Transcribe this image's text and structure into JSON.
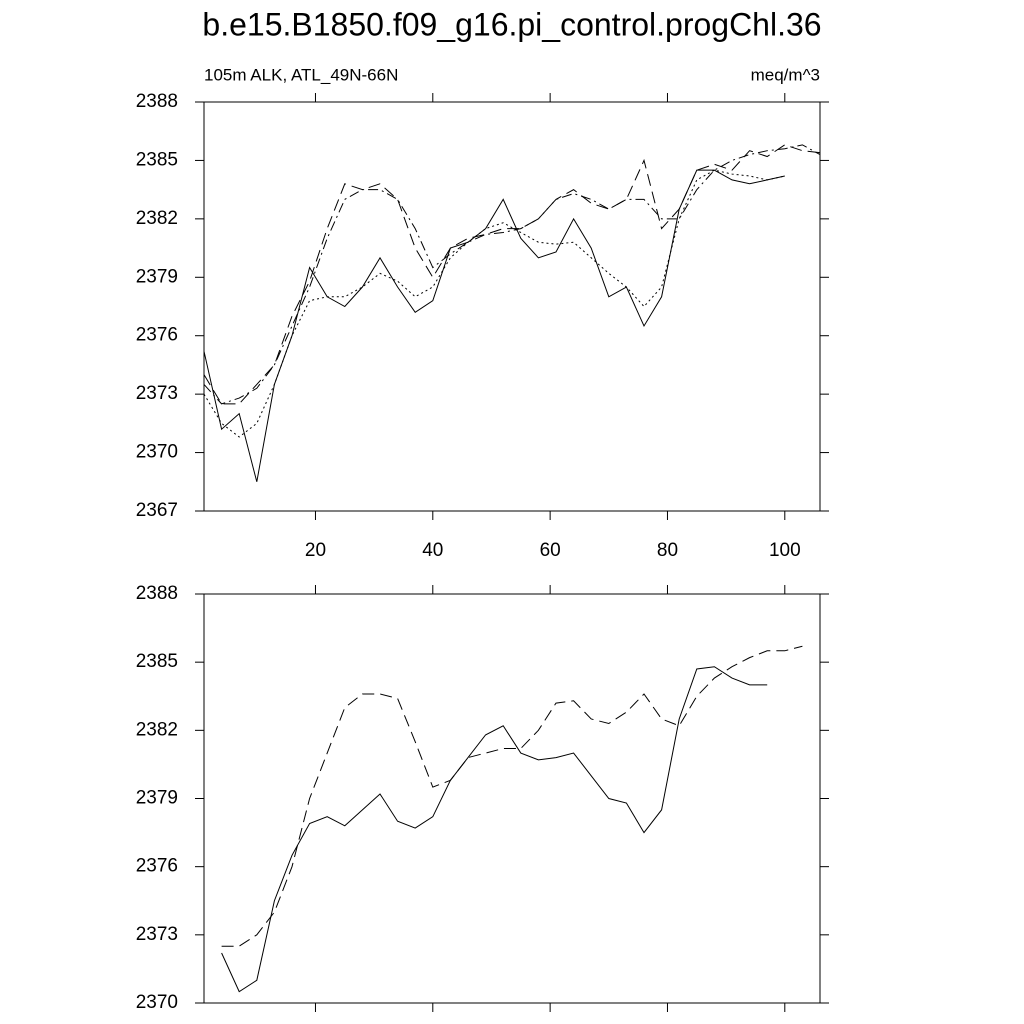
{
  "title": "b.e15.B1850.f09_g16.pi_control.progChl.36",
  "chart_data": [
    {
      "type": "line",
      "left_string": "105m ALK, ATL_49N-66N",
      "right_string": "meq/m^3",
      "xlim": [
        1,
        106
      ],
      "ylim": [
        2367,
        2388
      ],
      "xticks": [
        20,
        40,
        60,
        80,
        100
      ],
      "yticks": [
        2367,
        2370,
        2373,
        2376,
        2379,
        2382,
        2385,
        2388
      ],
      "xticklabels": true,
      "x": [
        1,
        4,
        7,
        10,
        13,
        16,
        19,
        22,
        25,
        28,
        31,
        34,
        37,
        40,
        43,
        46,
        49,
        52,
        55,
        58,
        61,
        64,
        67,
        70,
        73,
        76,
        79,
        82,
        85,
        88,
        91,
        94,
        97,
        100,
        103,
        106
      ],
      "series": [
        {
          "color": "#000000",
          "dash": "solid",
          "values": [
            2375.2,
            2371.2,
            2372.0,
            2368.5,
            2373.5,
            2376.0,
            2379.5,
            2378.0,
            2377.5,
            2378.5,
            2380.0,
            2378.5,
            2377.2,
            2377.8,
            2380.5,
            2380.8,
            2381.5,
            2383.0,
            2381.0,
            2380.0,
            2380.3,
            2382.0,
            2380.5,
            2378.0,
            2378.5,
            2376.5,
            2378.0,
            2382.5,
            2384.5,
            2384.5,
            2384.0,
            2383.8,
            2384.0,
            2384.2,
            null,
            null
          ]
        },
        {
          "color": "#000000",
          "dash": "dashed",
          "values": [
            2374.0,
            2372.5,
            2372.5,
            2373.5,
            2374.5,
            2377.0,
            2378.8,
            2381.5,
            2383.8,
            2383.5,
            2383.8,
            2383.0,
            2380.5,
            2379.0,
            2380.5,
            2381.0,
            2381.2,
            2381.5,
            2381.5,
            2382.0,
            2383.0,
            2383.5,
            2382.8,
            2382.5,
            2383.0,
            2385.0,
            2381.5,
            2382.5,
            2384.5,
            2384.8,
            2384.5,
            2385.5,
            2385.2,
            2385.8,
            2385.5,
            2385.4
          ]
        },
        {
          "color": "#000000",
          "dash": "dotted",
          "values": [
            2373.0,
            2371.5,
            2370.8,
            2371.5,
            2373.5,
            2376.0,
            2377.8,
            2378.0,
            2378.0,
            2378.5,
            2379.2,
            2378.8,
            2378.0,
            2378.5,
            2380.0,
            2380.8,
            2381.5,
            2381.8,
            2381.3,
            2380.8,
            2380.7,
            2380.8,
            2380.0,
            2379.2,
            2378.5,
            2377.5,
            2378.5,
            2382.0,
            2384.0,
            2384.5,
            2384.3,
            2384.2,
            2384.0,
            2384.2,
            null,
            null
          ]
        },
        {
          "color": "#000000",
          "dash": "dashdot",
          "values": [
            2373.5,
            2372.5,
            2372.8,
            2373.3,
            2374.5,
            2376.5,
            2378.5,
            2381.0,
            2383.0,
            2383.5,
            2383.5,
            2383.0,
            2381.5,
            2379.5,
            2380.2,
            2380.8,
            2381.2,
            2381.3,
            2381.5,
            2382.0,
            2383.0,
            2383.3,
            2383.0,
            2382.5,
            2383.0,
            2383.0,
            2382.0,
            2382.0,
            2383.5,
            2384.5,
            2385.0,
            2385.3,
            2385.5,
            2385.6,
            2385.8,
            2385.3
          ]
        }
      ]
    },
    {
      "type": "line",
      "xlim": [
        1,
        106
      ],
      "ylim": [
        2370,
        2388
      ],
      "xticks": [
        20,
        40,
        60,
        80,
        100
      ],
      "yticks": [
        2370,
        2373,
        2376,
        2379,
        2382,
        2385,
        2388
      ],
      "xticklabels": false,
      "x": [
        4,
        7,
        10,
        13,
        16,
        19,
        22,
        25,
        28,
        31,
        34,
        37,
        40,
        43,
        46,
        49,
        52,
        55,
        58,
        61,
        64,
        67,
        70,
        73,
        76,
        79,
        82,
        85,
        88,
        91,
        94,
        97,
        100,
        103
      ],
      "series": [
        {
          "color": "#000000",
          "dash": "solid",
          "values": [
            2372.2,
            2370.5,
            2371.0,
            2374.5,
            2376.5,
            2377.9,
            2378.2,
            2377.8,
            2378.5,
            2379.2,
            2378.0,
            2377.7,
            2378.2,
            2379.8,
            2380.8,
            2381.8,
            2382.2,
            2381.0,
            2380.7,
            2380.8,
            2381.0,
            2380.0,
            2379.0,
            2378.8,
            2377.5,
            2378.5,
            2382.5,
            2384.7,
            2384.8,
            2384.3,
            2384.0,
            2384.0,
            null,
            null
          ]
        },
        {
          "color": "#000000",
          "dash": "dashed",
          "values": [
            2372.5,
            2372.5,
            2373.0,
            2374.0,
            2376.0,
            2379.0,
            2381.0,
            2383.0,
            2383.6,
            2383.6,
            2383.4,
            2381.5,
            2379.5,
            2379.8,
            2380.8,
            2381.0,
            2381.2,
            2381.2,
            2382.0,
            2383.2,
            2383.3,
            2382.5,
            2382.3,
            2382.8,
            2383.6,
            2382.5,
            2382.2,
            2383.5,
            2384.3,
            2384.8,
            2385.2,
            2385.5,
            2385.5,
            2385.7
          ]
        }
      ]
    }
  ]
}
